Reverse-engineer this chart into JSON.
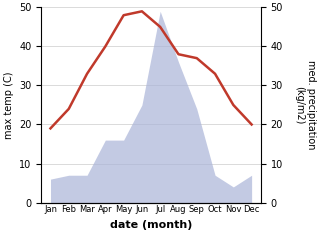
{
  "months": [
    "Jan",
    "Feb",
    "Mar",
    "Apr",
    "May",
    "Jun",
    "Jul",
    "Aug",
    "Sep",
    "Oct",
    "Nov",
    "Dec"
  ],
  "temperature": [
    19,
    24,
    33,
    40,
    48,
    49,
    45,
    38,
    37,
    33,
    25,
    20
  ],
  "precipitation": [
    6,
    7,
    7,
    16,
    16,
    25,
    49,
    36,
    24,
    7,
    4,
    7
  ],
  "temp_color": "#c0392b",
  "precip_color": "#aab4d8",
  "ylim": [
    0,
    50
  ],
  "xlabel": "date (month)",
  "ylabel_left": "max temp (C)",
  "ylabel_right": "med. precipitation\n(kg/m2)",
  "yticks": [
    0,
    10,
    20,
    30,
    40,
    50
  ],
  "background_color": "#ffffff"
}
